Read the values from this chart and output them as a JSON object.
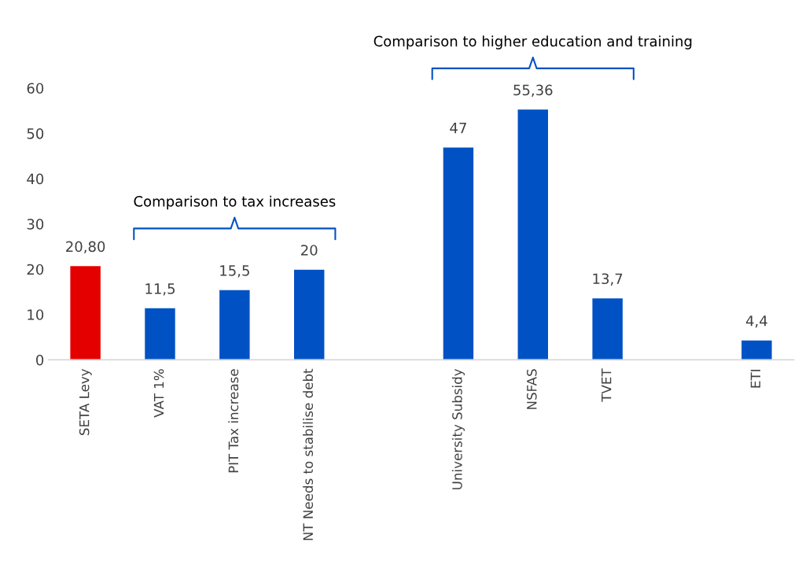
{
  "chart_data": {
    "type": "bar",
    "categories": [
      "SETA Levy",
      "VAT 1%",
      "PIT Tax increase",
      "NT Needs to stabilise debt",
      null,
      "University Subsidy",
      "NSFAS",
      "TVET",
      null,
      "ETI"
    ],
    "values": [
      20.8,
      11.5,
      15.5,
      20,
      null,
      47,
      55.36,
      13.7,
      null,
      4.4
    ],
    "colors": [
      "#e50000",
      "#0052c4",
      "#0052c4",
      "#0052c4",
      "#0052c4",
      "#0052c4",
      "#0052c4",
      "#0052c4",
      "#0052c4",
      "#0052c4"
    ],
    "value_labels": [
      "20,80",
      "11,5",
      "15,5",
      "20",
      null,
      "47",
      "55,36",
      "13,7",
      null,
      "4,4"
    ],
    "ylim": [
      0,
      60
    ],
    "yticks": [
      0,
      10,
      20,
      30,
      40,
      50,
      60
    ],
    "annotations": [
      "Comparison to tax increases",
      "Comparison to higher education and training"
    ],
    "grid": false,
    "legend": false
  }
}
